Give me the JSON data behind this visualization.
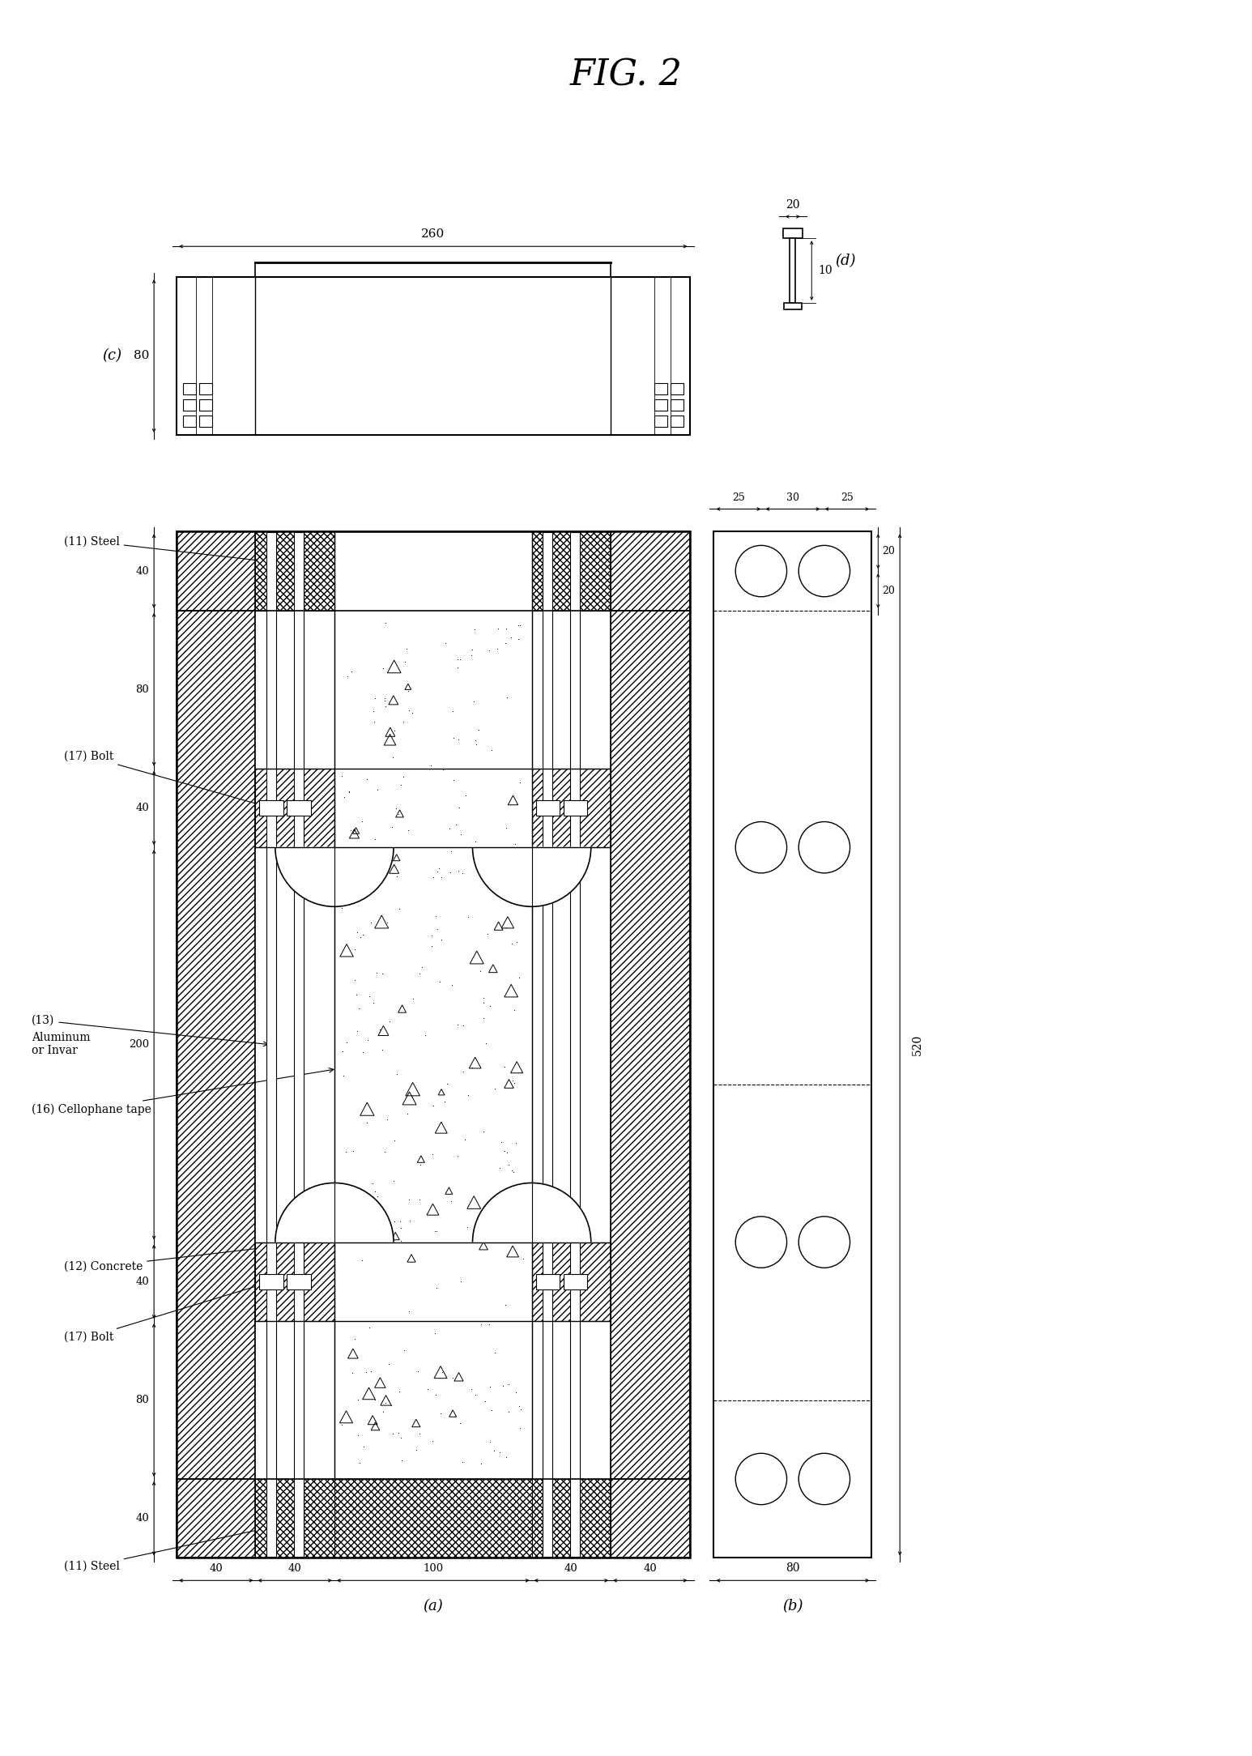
{
  "title": "FIG. 2",
  "background_color": "#ffffff",
  "labels": {
    "11_steel": "(11) Steel",
    "17_bolt": "(17) Bolt",
    "13_label": "(13)",
    "13_text": "Aluminum\nor Invar",
    "16_cellophane": "(16) Cellophane tape",
    "12_concrete": "(12) Concrete",
    "a": "(a)",
    "b": "(b)",
    "c": "(c)",
    "d": "(d)"
  }
}
